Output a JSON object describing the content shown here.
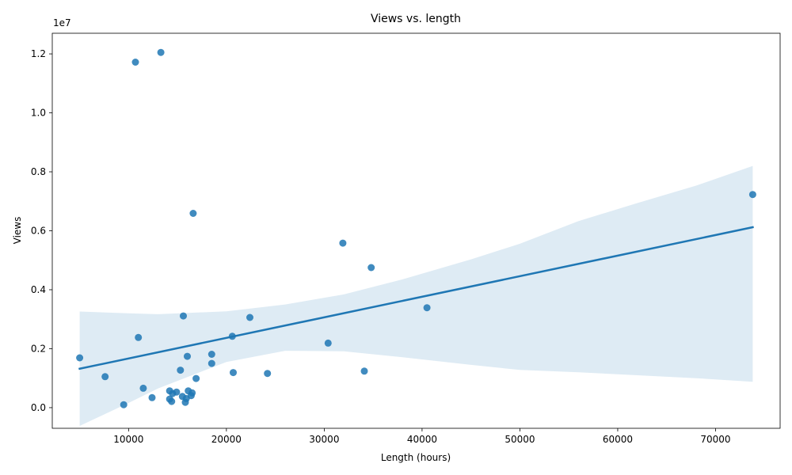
{
  "chart_data": {
    "type": "scatter",
    "title": "Views vs. length",
    "xlabel": "Length (hours)",
    "ylabel": "Views",
    "y_offset_text": "1e7",
    "x_range": [
      2200,
      76600
    ],
    "y_range": [
      -700000,
      12700000
    ],
    "x_ticks": [
      10000,
      20000,
      30000,
      40000,
      50000,
      60000,
      70000
    ],
    "x_tick_labels": [
      "10000",
      "20000",
      "30000",
      "40000",
      "50000",
      "60000",
      "70000"
    ],
    "y_ticks": [
      0,
      2000000,
      4000000,
      6000000,
      8000000,
      10000000,
      12000000
    ],
    "y_tick_labels": [
      "0.0",
      "0.2",
      "0.4",
      "0.6",
      "0.8",
      "1.0",
      "1.2"
    ],
    "grid": false,
    "point_color": "#1f77b4",
    "points": [
      {
        "x": 13300,
        "y": 12050000
      },
      {
        "x": 10700,
        "y": 11720000
      },
      {
        "x": 73800,
        "y": 7230000
      },
      {
        "x": 16600,
        "y": 6590000
      },
      {
        "x": 31900,
        "y": 5580000
      },
      {
        "x": 34800,
        "y": 4750000
      },
      {
        "x": 40500,
        "y": 3390000
      },
      {
        "x": 15600,
        "y": 3110000
      },
      {
        "x": 22400,
        "y": 3060000
      },
      {
        "x": 20600,
        "y": 2420000
      },
      {
        "x": 11000,
        "y": 2380000
      },
      {
        "x": 30400,
        "y": 2190000
      },
      {
        "x": 18500,
        "y": 1810000
      },
      {
        "x": 16000,
        "y": 1740000
      },
      {
        "x": 5000,
        "y": 1690000
      },
      {
        "x": 18500,
        "y": 1500000
      },
      {
        "x": 15300,
        "y": 1270000
      },
      {
        "x": 34100,
        "y": 1240000
      },
      {
        "x": 20700,
        "y": 1190000
      },
      {
        "x": 24200,
        "y": 1160000
      },
      {
        "x": 7600,
        "y": 1050000
      },
      {
        "x": 16900,
        "y": 990000
      },
      {
        "x": 11500,
        "y": 660000
      },
      {
        "x": 14200,
        "y": 570000
      },
      {
        "x": 14900,
        "y": 530000
      },
      {
        "x": 16100,
        "y": 570000
      },
      {
        "x": 14500,
        "y": 480000
      },
      {
        "x": 16500,
        "y": 500000
      },
      {
        "x": 16400,
        "y": 410000
      },
      {
        "x": 15500,
        "y": 380000
      },
      {
        "x": 12400,
        "y": 340000
      },
      {
        "x": 14200,
        "y": 290000
      },
      {
        "x": 15900,
        "y": 310000
      },
      {
        "x": 14400,
        "y": 210000
      },
      {
        "x": 15800,
        "y": 180000
      },
      {
        "x": 9500,
        "y": 100000
      }
    ],
    "regression": {
      "x_start": 5000,
      "y_start": 1320000,
      "x_end": 73800,
      "y_end": 6120000,
      "color": "#1f77b4"
    },
    "confidence_band": {
      "color": "#1f77b4",
      "x": [
        5000,
        10000,
        13000,
        20000,
        26000,
        32000,
        38000,
        45000,
        50000,
        56000,
        62000,
        68000,
        73800
      ],
      "upper": [
        3260000,
        3200000,
        3170000,
        3270000,
        3500000,
        3840000,
        4350000,
        5030000,
        5560000,
        6330000,
        6940000,
        7530000,
        8200000
      ],
      "lower": [
        -620000,
        160000,
        650000,
        1550000,
        1930000,
        1910000,
        1710000,
        1450000,
        1280000,
        1200000,
        1100000,
        1000000,
        880000
      ]
    }
  }
}
